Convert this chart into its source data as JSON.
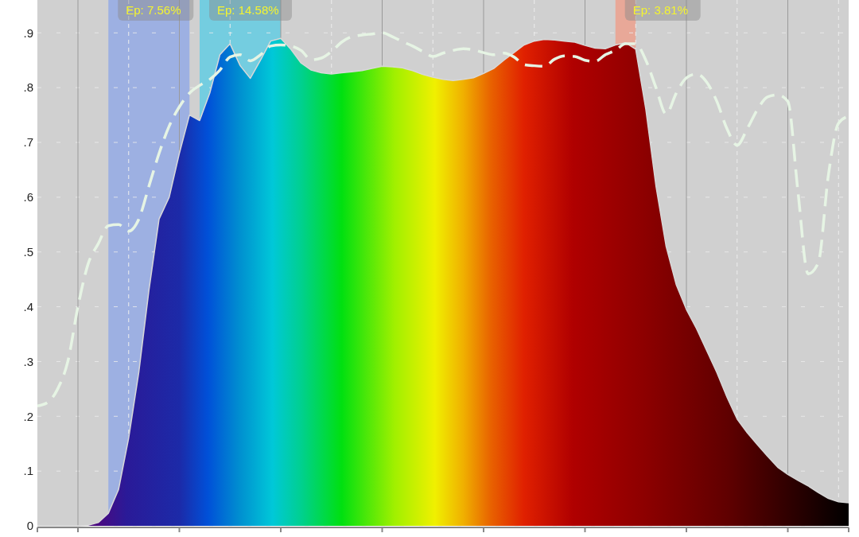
{
  "chart_data": {
    "type": "area",
    "categories": [
      null,
      null,
      null,
      null,
      null,
      null,
      null,
      null,
      null,
      null,
      null,
      null,
      null,
      null,
      null,
      null,
      null,
      null,
      null,
      null,
      null,
      null,
      null,
      null,
      null,
      null,
      null,
      null,
      null,
      null,
      null,
      null,
      null,
      null,
      null,
      null,
      null,
      null,
      null,
      null,
      null,
      null,
      null,
      null,
      null,
      null,
      null,
      null,
      null,
      null,
      null,
      null,
      null,
      null,
      null,
      null,
      null,
      null,
      null,
      null,
      null,
      null,
      null,
      null,
      null,
      null,
      null,
      null,
      null,
      null,
      null,
      null,
      null,
      null,
      null,
      null,
      null,
      null,
      null,
      null,
      null
    ],
    "ylim": [
      0,
      0.96
    ],
    "yticks": [
      {
        "value": 0,
        "label": "0"
      },
      {
        "value": 0.1,
        "label": ".1"
      },
      {
        "value": 0.2,
        "label": ".2"
      },
      {
        "value": 0.3,
        "label": ".3"
      },
      {
        "value": 0.4,
        "label": ".4"
      },
      {
        "value": 0.5,
        "label": ".5"
      },
      {
        "value": 0.6,
        "label": ".6"
      },
      {
        "value": 0.7,
        "label": ".7"
      },
      {
        "value": 0.8,
        "label": ".8"
      },
      {
        "value": 0.9,
        "label": ".9"
      }
    ],
    "grid": true,
    "series": [
      {
        "color": "#d8d8d8",
        "values": [
          0,
          0,
          0,
          0,
          0,
          0.001,
          0.006,
          0.023,
          0.066,
          0.16,
          0.28,
          0.43,
          0.56,
          0.6,
          0.68,
          0.75,
          0.74,
          0.79,
          0.86,
          0.88,
          0.84,
          0.817,
          0.85,
          0.885,
          0.89,
          0.87,
          0.845,
          0.832,
          0.827,
          0.825,
          0.827,
          0.829,
          0.831,
          0.835,
          0.839,
          0.838,
          0.836,
          0.831,
          0.824,
          0.819,
          0.815,
          0.813,
          0.815,
          0.818,
          0.826,
          0.835,
          0.85,
          0.864,
          0.878,
          0.885,
          0.888,
          0.887,
          0.885,
          0.883,
          0.877,
          0.872,
          0.871,
          0.878,
          0.882,
          0.87,
          0.76,
          0.62,
          0.51,
          0.44,
          0.395,
          0.36,
          0.32,
          0.28,
          0.235,
          0.195,
          0.17,
          0.148,
          0.127,
          0.107,
          0.094,
          0.083,
          0.073,
          0.061,
          0.05,
          0.044,
          0.042
        ]
      },
      {
        "type": "line",
        "color": "#e6f4e4",
        "line_style": "dashed",
        "values": [
          0.219,
          0.225,
          0.25,
          0.3,
          0.4,
          0.478,
          0.515,
          0.548,
          0.55,
          0.538,
          0.56,
          0.62,
          0.68,
          0.73,
          0.765,
          0.79,
          0.804,
          0.815,
          0.832,
          0.856,
          0.86,
          0.849,
          0.86,
          0.876,
          0.878,
          0.876,
          0.868,
          0.851,
          0.854,
          0.866,
          0.883,
          0.893,
          0.896,
          0.898,
          0.9,
          0.893,
          0.884,
          0.876,
          0.866,
          0.857,
          0.863,
          0.868,
          0.871,
          0.869,
          0.864,
          0.86,
          0.863,
          0.856,
          0.842,
          0.84,
          0.839,
          0.852,
          0.858,
          0.857,
          0.85,
          0.848,
          0.86,
          0.868,
          0.88,
          0.88,
          0.85,
          0.8,
          0.752,
          0.79,
          0.818,
          0.825,
          0.81,
          0.775,
          0.725,
          0.695,
          0.725,
          0.76,
          0.783,
          0.787,
          0.775,
          0.61,
          0.46,
          0.48,
          0.64,
          0.735,
          0.748
        ]
      }
    ],
    "annotations": [
      "Ep: 7.56%",
      "Ep: 14.58%",
      "Ep: 3.81%"
    ]
  }
}
